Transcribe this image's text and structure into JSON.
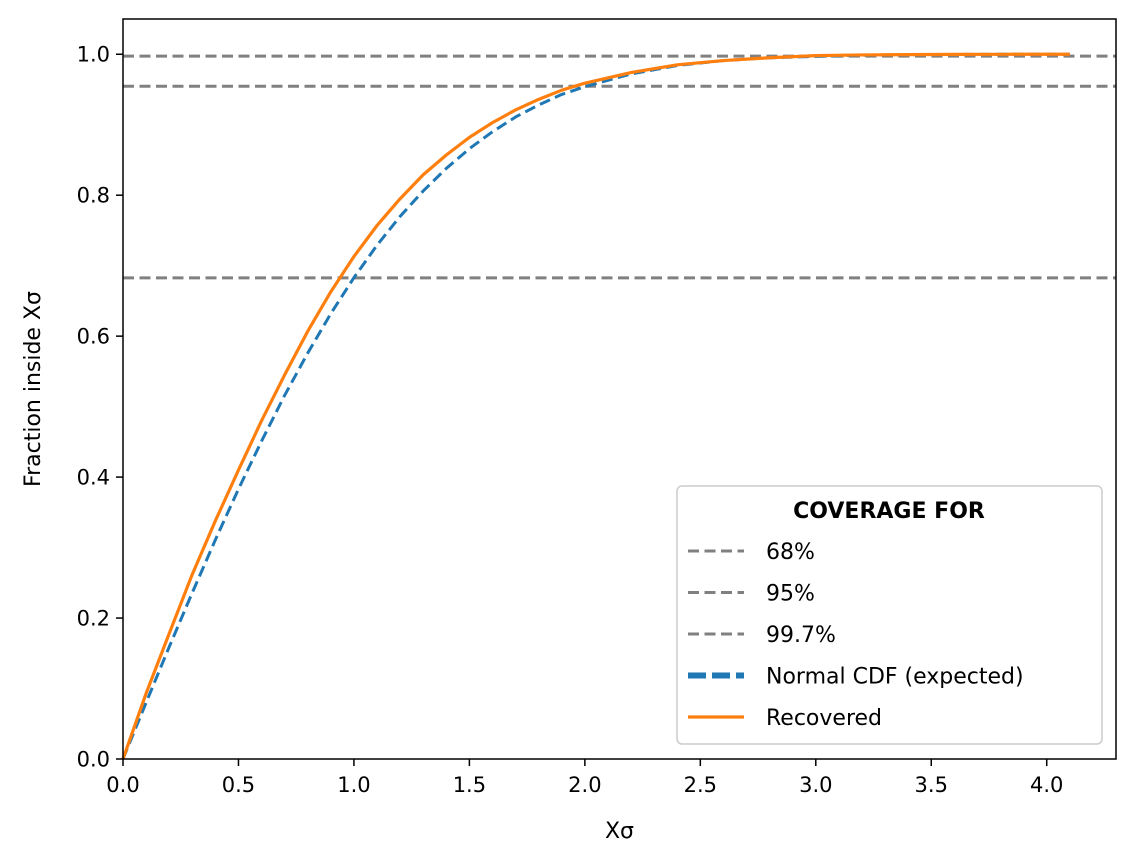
{
  "chart_data": {
    "type": "line",
    "title": "",
    "xlabel": "Xσ",
    "ylabel": "Fraction inside Xσ",
    "xlim": [
      0,
      4.3
    ],
    "ylim": [
      0,
      1.05
    ],
    "x_ticks": [
      0.0,
      0.5,
      1.0,
      1.5,
      2.0,
      2.5,
      3.0,
      3.5,
      4.0
    ],
    "x_tick_labels": [
      "0.0",
      "0.5",
      "1.0",
      "1.5",
      "2.0",
      "2.5",
      "3.0",
      "3.5",
      "4.0"
    ],
    "y_ticks": [
      0.0,
      0.2,
      0.4,
      0.6,
      0.8,
      1.0
    ],
    "y_tick_labels": [
      "0.0",
      "0.2",
      "0.4",
      "0.6",
      "0.8",
      "1.0"
    ],
    "grid": false,
    "legend": {
      "title": "COVERAGE FOR",
      "placement": "lower-right",
      "entries": [
        {
          "label": "68%",
          "style": "dashed",
          "color": "#808080"
        },
        {
          "label": "95%",
          "style": "dashed",
          "color": "#808080"
        },
        {
          "label": "99.7%",
          "style": "dashed",
          "color": "#808080"
        },
        {
          "label": "Normal CDF (expected)",
          "style": "thick-dashed",
          "color": "#1f77b4"
        },
        {
          "label": "Recovered",
          "style": "solid",
          "color": "#ff7f0e"
        }
      ]
    },
    "hlines": [
      {
        "name": "68%",
        "y": 0.6827,
        "color": "#808080"
      },
      {
        "name": "95%",
        "y": 0.9545,
        "color": "#808080"
      },
      {
        "name": "99.7%",
        "y": 0.9973,
        "color": "#808080"
      }
    ],
    "series": [
      {
        "name": "Normal CDF (expected)",
        "color": "#1f77b4",
        "style": "dashed",
        "x": [
          0,
          0.1,
          0.2,
          0.3,
          0.4,
          0.5,
          0.6,
          0.7,
          0.8,
          0.9,
          1.0,
          1.1,
          1.2,
          1.3,
          1.4,
          1.5,
          1.6,
          1.7,
          1.8,
          1.9,
          2.0,
          2.2,
          2.4,
          2.6,
          2.8,
          3.0,
          3.2,
          3.4,
          3.6,
          3.8,
          4.0,
          4.1
        ],
        "y": [
          0,
          0.08,
          0.159,
          0.236,
          0.311,
          0.383,
          0.451,
          0.516,
          0.576,
          0.632,
          0.683,
          0.729,
          0.77,
          0.806,
          0.838,
          0.866,
          0.89,
          0.911,
          0.928,
          0.943,
          0.954,
          0.972,
          0.984,
          0.991,
          0.995,
          0.997,
          0.9986,
          0.9993,
          0.9997,
          0.9999,
          0.99994,
          0.99996
        ]
      },
      {
        "name": "Recovered",
        "color": "#ff7f0e",
        "style": "solid",
        "x": [
          0,
          0.1,
          0.2,
          0.3,
          0.4,
          0.5,
          0.6,
          0.7,
          0.8,
          0.9,
          1.0,
          1.1,
          1.2,
          1.3,
          1.4,
          1.5,
          1.6,
          1.7,
          1.8,
          1.9,
          2.0,
          2.2,
          2.4,
          2.6,
          2.8,
          3.0,
          3.2,
          3.4,
          3.6,
          3.8,
          4.0,
          4.1
        ],
        "y": [
          0,
          0.093,
          0.178,
          0.262,
          0.338,
          0.41,
          0.48,
          0.545,
          0.607,
          0.663,
          0.713,
          0.757,
          0.795,
          0.829,
          0.857,
          0.882,
          0.903,
          0.921,
          0.936,
          0.949,
          0.959,
          0.974,
          0.985,
          0.991,
          0.995,
          0.998,
          0.999,
          0.9995,
          0.9998,
          0.9999,
          1.0,
          1.0
        ]
      }
    ]
  }
}
